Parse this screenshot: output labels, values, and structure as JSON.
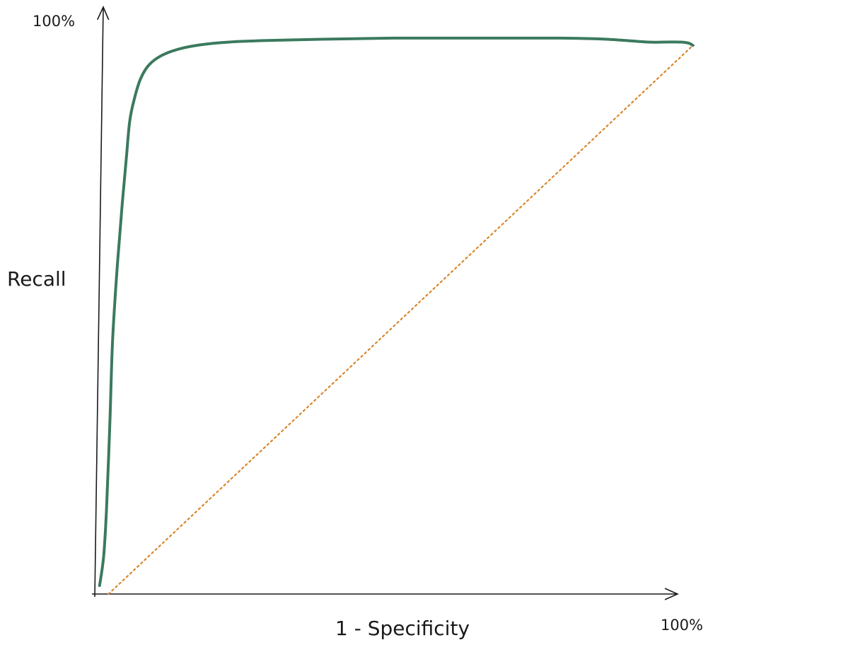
{
  "chart_data": {
    "type": "line",
    "title": "",
    "xlabel": "1 - Specificity",
    "ylabel": "Recall",
    "xlim": [
      0,
      100
    ],
    "ylim": [
      0,
      100
    ],
    "x_tick_labels": [
      {
        "value": 100,
        "label": "100%"
      }
    ],
    "y_tick_labels": [
      {
        "value": 100,
        "label": "100%"
      }
    ],
    "grid": false,
    "legend": "none",
    "series": [
      {
        "role": "roc-curve",
        "color": "#3b7a5e",
        "x": [
          0.7,
          1.3,
          1.7,
          2.2,
          2.6,
          3.3,
          4.0,
          4.6,
          5.1,
          5.8,
          6.7,
          7.9,
          9.6,
          12.1,
          15.4,
          19.6,
          25.7,
          33.0,
          43.7,
          55.8,
          67.9,
          74.6,
          80.6,
          83.0,
          85.4,
          86.6,
          87.2
        ],
        "y": [
          1.5,
          6.8,
          14.9,
          30.5,
          45.4,
          59.0,
          69.8,
          78.0,
          84.7,
          88.8,
          92.3,
          94.7,
          96.3,
          97.5,
          98.3,
          98.8,
          99.1,
          99.3,
          99.5,
          99.5,
          99.5,
          99.3,
          98.8,
          98.8,
          98.8,
          98.6,
          98.2
        ]
      },
      {
        "role": "random-baseline",
        "color": "#d9862b",
        "dashed": true,
        "x": [
          2.0,
          87.2
        ],
        "y": [
          0.0,
          98.2
        ]
      }
    ]
  }
}
